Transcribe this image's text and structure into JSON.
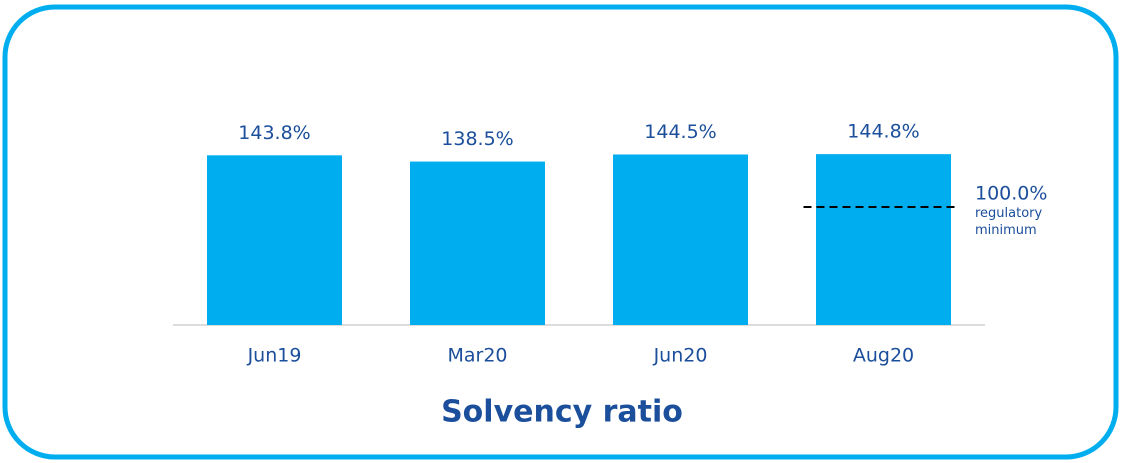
{
  "chart_data": {
    "type": "bar",
    "title": "Solvency ratio",
    "categories": [
      "Jun19",
      "Mar20",
      "Jun20",
      "Aug20"
    ],
    "values": [
      143.8,
      138.5,
      144.5,
      144.8
    ],
    "value_labels": [
      "143.8%",
      "138.5%",
      "144.5%",
      "144.8%"
    ],
    "color": "#00aeef",
    "ylim": [
      0,
      150
    ],
    "reference_line": {
      "value": 100,
      "label": "100.0%",
      "note": "regulatory minimum"
    }
  }
}
